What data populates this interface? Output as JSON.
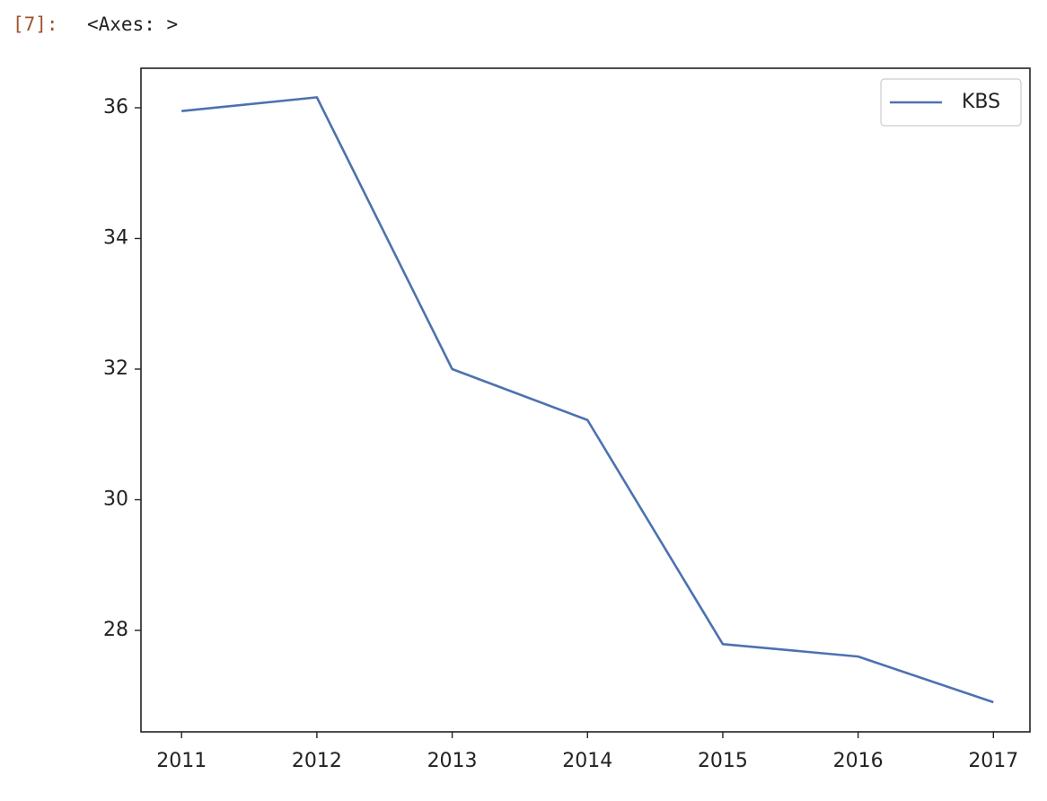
{
  "cell": {
    "prompt": "[7]:",
    "output": "<Axes: >"
  },
  "chart_data": {
    "type": "line",
    "x": [
      2011,
      2012,
      2013,
      2014,
      2015,
      2016,
      2017
    ],
    "series": [
      {
        "name": "KBS",
        "color": "#4c72b0",
        "values": [
          35.95,
          36.16,
          32.0,
          31.22,
          27.79,
          27.6,
          26.9
        ]
      }
    ],
    "xlim": [
      2010.7,
      2017.27
    ],
    "xticks": [
      2011,
      2012,
      2013,
      2014,
      2015,
      2016,
      2017
    ],
    "ylim": [
      26.447,
      36.605
    ],
    "yticks": [
      28,
      30,
      32,
      34,
      36
    ],
    "grid": false,
    "legend": "upper right"
  }
}
